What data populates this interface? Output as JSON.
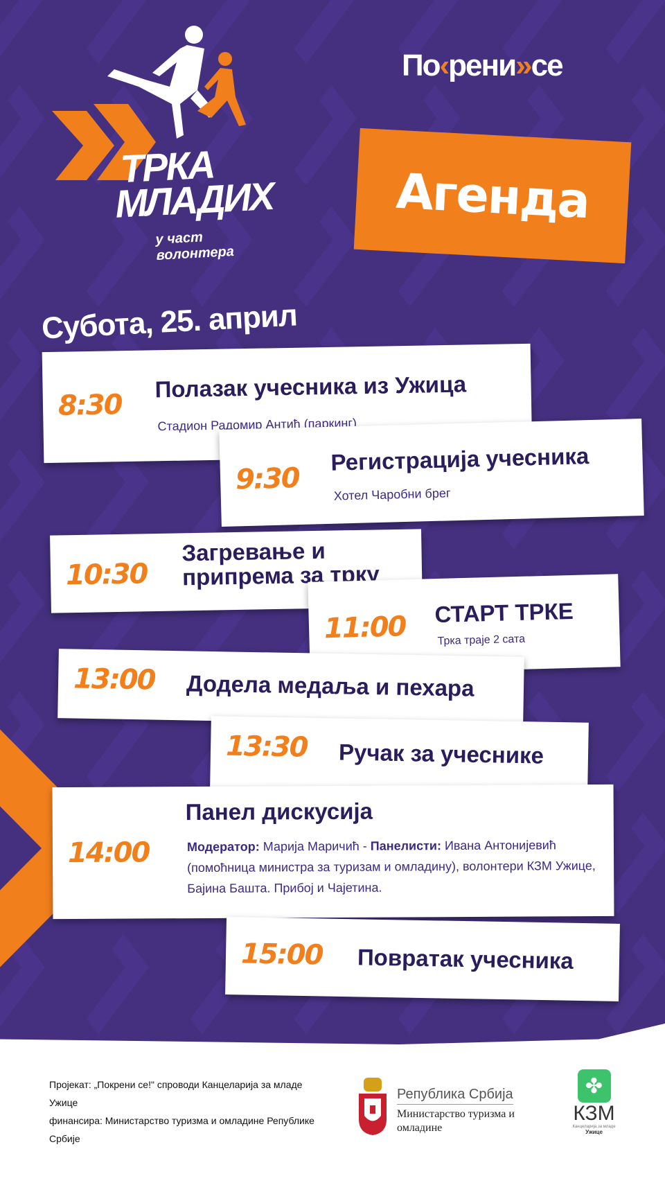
{
  "brand": {
    "logo_line1": "ТРКА",
    "logo_line2": "МЛАДИХ",
    "logo_tagline": "у част волонтера",
    "pokreni_a": "По",
    "pokreni_b": "рени",
    "pokreni_c": "се"
  },
  "agenda_label": "Агенда",
  "date": "Субота, 25. април",
  "items": [
    {
      "time": "8:30",
      "title": "Полазак учесника из Ужица",
      "sub": "Стадион Радомир Антић (паркинг)"
    },
    {
      "time": "9:30",
      "title": "Регистрација учесника",
      "sub": "Хотел Чаробни брег"
    },
    {
      "time": "10:30",
      "title": "Загревање и припрема за трку"
    },
    {
      "time": "11:00",
      "title": "СТАРТ ТРКЕ",
      "sub": "Трка траје 2 сата"
    },
    {
      "time": "13:00",
      "title": "Додела медаља и пехара"
    },
    {
      "time": "13:30",
      "title": "Ручак за учеснике"
    },
    {
      "time": "14:00",
      "title": "Панел дискусија",
      "moderator_label": "Модератор:",
      "moderator": " Марија Маричић - ",
      "panelists_label": "Панелисти:",
      "panelists": " Ивана Антонијевић (помоћница министра за туризам и омладину), волонтери КЗМ Ужице, Бајина Башта. Прибој и Чајетина."
    },
    {
      "time": "15:00",
      "title": "Повратак учесника"
    }
  ],
  "footer": {
    "line1": "Пројекат: „Покрени се!\" спроводи Канцеларија за младе Ужице",
    "line2": "финансира: Министарство туризма и омладине Републике Србије",
    "gov_name": "Република Србија",
    "ministry": "Министарство туризма и омладине",
    "kzm": "КЗМ",
    "kzm_sub": "Канцеларија за младе",
    "kzm_city": "Ужице"
  },
  "colors": {
    "purple": "#44307e",
    "orange": "#f07f1c",
    "text": "#2b1d5c"
  }
}
